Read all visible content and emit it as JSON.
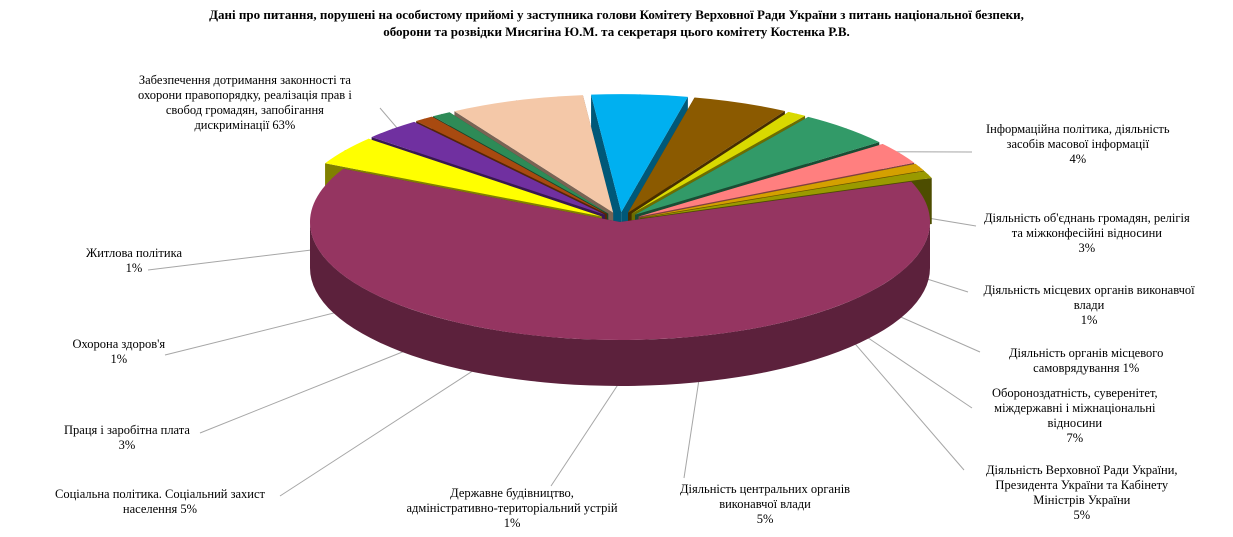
{
  "title_lines": [
    "Дані про питання, порушені на особистому прийомі у заступника голови Комітету Верховної Ради України з питань національної безпеки,",
    "оборони та розвідки Мисягіна Ю.М. та секретаря цього комітету Костенка Р.В."
  ],
  "chart_data": {
    "type": "pie",
    "title": "Дані про питання, порушені на особистому прийомі у заступника голови Комітету Верховної Ради України з питань національної безпеки, оборони та розвідки Мисягіна Ю.М. та секретаря цього комітету Костенка Р.В.",
    "exploded": true,
    "three_d": true,
    "unit": "%",
    "slices": [
      {
        "lines": [
          "Забезпечення дотримання законності та",
          "охорони правопорядку, реалізація прав і",
          "свобод громадян, запобігання",
          "дискримінації 63%"
        ],
        "value": 63,
        "color": "#953561"
      },
      {
        "lines": [
          "Інформаційна політика, діяльність",
          "засобів масової інформації",
          "4%"
        ],
        "value": 4,
        "color": "#ffff00"
      },
      {
        "lines": [
          "Діяльність об'єднань громадян, релігія",
          "та міжконфесійні відносини",
          "3%"
        ],
        "value": 3,
        "color": "#7030a0"
      },
      {
        "lines": [
          "Діяльність місцевих органів виконавчої",
          "влади",
          "1%"
        ],
        "value": 1,
        "color": "#a84a10"
      },
      {
        "lines": [
          "Діяльність органів місцевого",
          "самоврядування 1%"
        ],
        "value": 1,
        "color": "#2e8b57"
      },
      {
        "lines": [
          "Обороноздатність, суверенітет,",
          "міждержавні і міжнаціональні",
          "відносини",
          "7%"
        ],
        "value": 7,
        "color": "#f4c8a8"
      },
      {
        "lines": [
          "Діяльність Верховної Ради України,",
          "Президента України та Кабінету",
          "Міністрів України",
          "5%"
        ],
        "value": 5,
        "color": "#00b0f0"
      },
      {
        "lines": [
          "Діяльність центральних органів",
          "виконавчої влади",
          "5%"
        ],
        "value": 5,
        "color": "#8b5a00"
      },
      {
        "lines": [
          "Державне будівництво,",
          "адміністративно-територіальний устрій",
          "1%"
        ],
        "value": 1,
        "color": "#d9d900"
      },
      {
        "lines": [
          "Соціальна політика. Соціальний захист",
          "населення 5%"
        ],
        "value": 5,
        "color": "#329a68"
      },
      {
        "lines": [
          "Праця і заробітна плата",
          "3%"
        ],
        "value": 3,
        "color": "#ff7f7f"
      },
      {
        "lines": [
          "Охорона здоров'я",
          "1%"
        ],
        "value": 1,
        "color": "#d4a000"
      },
      {
        "lines": [
          "Житлова політика",
          "1%"
        ],
        "value": 1,
        "color": "#9a9a00"
      }
    ]
  }
}
